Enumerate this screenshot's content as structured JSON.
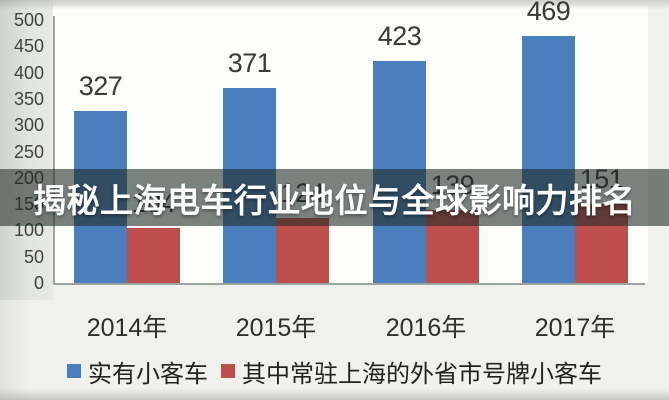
{
  "banner": {
    "title": "揭秘上海电车行业地位与全球影响力排名"
  },
  "chart_data": {
    "type": "bar",
    "categories": [
      "2014年",
      "2015年",
      "2016年",
      "2017年"
    ],
    "series": [
      {
        "name": "实有小客车",
        "color": "#4a7ebc",
        "values": [
          327,
          371,
          423,
          469
        ]
      },
      {
        "name": "其中常驻上海的外省市号牌小客车",
        "color": "#bf4f4c",
        "values": [
          104,
          124,
          139,
          151
        ]
      }
    ],
    "title": "",
    "xlabel": "",
    "ylabel": "",
    "ylim": [
      0,
      500
    ],
    "yticks": [
      500,
      450,
      400,
      350,
      300,
      250,
      200,
      150,
      100,
      50,
      0
    ],
    "grid": false,
    "legend_position": "bottom",
    "value_labels_shown": [
      "327",
      "371",
      "423",
      "469",
      "124",
      "139",
      "151"
    ]
  },
  "colors": {
    "bar_blue": "#4a7ebc",
    "bar_red": "#bf4f4c",
    "banner_overlay": "rgba(30,42,36,0.58)",
    "axis": "#9aa3a0",
    "label_text": "#383a3a"
  }
}
